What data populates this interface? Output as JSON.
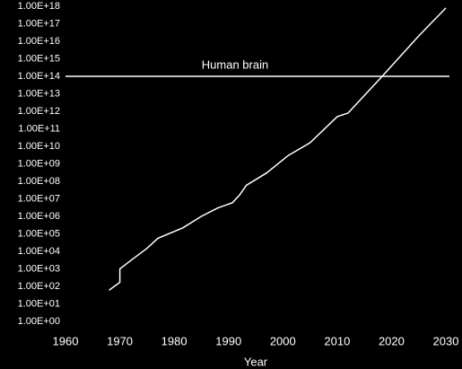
{
  "chart_data": {
    "type": "line",
    "x_label": "Year",
    "x": [
      1968,
      1970,
      1970,
      1972,
      1975,
      1977,
      1981.6,
      1985,
      1988,
      1990.7,
      1992,
      1993.3,
      1997,
      2001,
      2005,
      2010,
      2012,
      2018,
      2025,
      2030
    ],
    "values": [
      60,
      170,
      1000,
      3000,
      15000,
      56000,
      220000,
      1000000,
      3000000,
      6000000,
      16000000,
      60000000,
      300000000,
      3000000000,
      16000000000,
      500000000000,
      800000000000,
      80000000000000,
      20000000000000000,
      800000000000000000
    ],
    "color": "#ffffff",
    "xlim": [
      1960,
      2030
    ],
    "xticks": [
      1960,
      1970,
      1980,
      1990,
      2000,
      2010,
      2020,
      2030
    ],
    "ylim": [
      1,
      1e+18
    ],
    "log_y": true,
    "yticks": [
      {
        "value": 1,
        "label": "1.00E+00"
      },
      {
        "value": 10,
        "label": "1.00E+01"
      },
      {
        "value": 100,
        "label": "1.00E+02"
      },
      {
        "value": 1000,
        "label": "1.00E+03"
      },
      {
        "value": 10000.0,
        "label": "1.00E+04"
      },
      {
        "value": 100000.0,
        "label": "1.00E+05"
      },
      {
        "value": 1000000.0,
        "label": "1.00E+06"
      },
      {
        "value": 10000000.0,
        "label": "1.00E+07"
      },
      {
        "value": 100000000.0,
        "label": "1.00E+08"
      },
      {
        "value": 1000000000.0,
        "label": "1.00E+09"
      },
      {
        "value": 10000000000.0,
        "label": "1.00E+10"
      },
      {
        "value": 100000000000.0,
        "label": "1.00E+11"
      },
      {
        "value": 1000000000000.0,
        "label": "1.00E+12"
      },
      {
        "value": 10000000000000.0,
        "label": "1.00E+13"
      },
      {
        "value": 100000000000000.0,
        "label": "1.00E+14"
      },
      {
        "value": 1000000000000000.0,
        "label": "1.00E+15"
      },
      {
        "value": 1e+16,
        "label": "1.00E+16"
      },
      {
        "value": 1e+17,
        "label": "1.00E+17"
      },
      {
        "value": 1e+18,
        "label": "1.00E+18"
      }
    ],
    "reference_lines": [
      {
        "value": 100000000000000.0,
        "label": "Human brain"
      }
    ]
  }
}
